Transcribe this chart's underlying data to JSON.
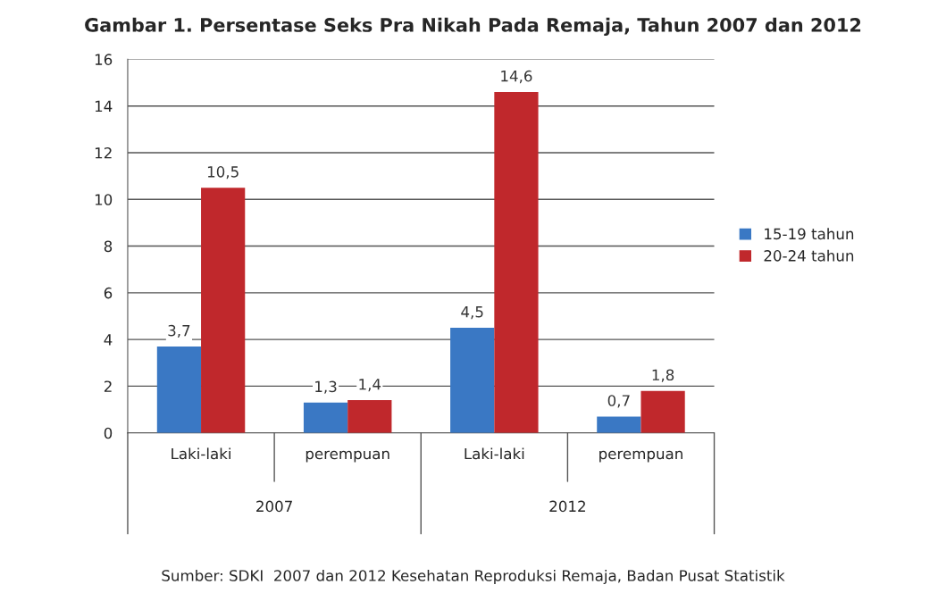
{
  "chart_data": {
    "type": "bar",
    "title": "Gambar 1. Persentase Seks Pra Nikah Pada Remaja, Tahun 2007 dan 2012",
    "categories": [
      "Laki-laki",
      "perempuan",
      "Laki-laki",
      "perempuan"
    ],
    "series": [
      {
        "name": "15-19 tahun",
        "color": "#3a78c4",
        "values": [
          3.7,
          1.3,
          4.5,
          0.7
        ],
        "value_labels": [
          "3,7",
          "1,3",
          "4,5",
          "0,7"
        ]
      },
      {
        "name": "20-24 tahun",
        "color": "#c0282c",
        "values": [
          10.5,
          1.4,
          14.6,
          1.8
        ],
        "value_labels": [
          "10,5",
          "1,4",
          "14,6",
          "1,8"
        ]
      }
    ],
    "ylim": [
      0,
      16
    ],
    "yticks": [
      0,
      2,
      4,
      6,
      8,
      10,
      12,
      14,
      16
    ],
    "grid": "y",
    "legend": "right",
    "annotations": [
      "2007",
      "2012",
      "Sumber: SDKI  2007 dan 2012 Kesehatan Reproduksi Remaja, Badan Pusat Statistik"
    ]
  }
}
